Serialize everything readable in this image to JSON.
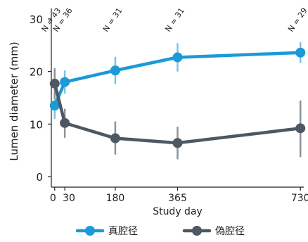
{
  "chart_data": {
    "type": "line",
    "xlabel": "Study day",
    "ylabel": "Lumen diameter (mm)",
    "x_ticks": [
      0,
      30,
      180,
      365,
      730
    ],
    "y_ticks": [
      0,
      10,
      20,
      30
    ],
    "xlim": [
      -10,
      740
    ],
    "ylim": [
      -2,
      32
    ],
    "n_labels": [
      {
        "x": 0,
        "text": "N = 43"
      },
      {
        "x": 30,
        "text": "N = 36"
      },
      {
        "x": 180,
        "text": "N = 31"
      },
      {
        "x": 365,
        "text": "N = 31"
      },
      {
        "x": 730,
        "text": "N = 29"
      }
    ],
    "series": [
      {
        "name": "真腔径",
        "color": "#1a9ad6",
        "err_color": "#7cc3e8",
        "points": [
          {
            "x": 0,
            "y": 13.5,
            "lo": 11.0,
            "hi": 16.0
          },
          {
            "x": 30,
            "y": 18.0,
            "lo": 15.8,
            "hi": 20.2
          },
          {
            "x": 180,
            "y": 20.2,
            "lo": 17.6,
            "hi": 22.8
          },
          {
            "x": 365,
            "y": 22.7,
            "lo": 20.0,
            "hi": 25.4
          },
          {
            "x": 730,
            "y": 23.6,
            "lo": 21.6,
            "hi": 25.6
          }
        ]
      },
      {
        "name": "偽腔径",
        "color": "#4d5863",
        "err_color": "#8b939b",
        "points": [
          {
            "x": 0,
            "y": 17.7,
            "lo": 14.8,
            "hi": 20.6
          },
          {
            "x": 30,
            "y": 10.2,
            "lo": 7.4,
            "hi": 12.9
          },
          {
            "x": 180,
            "y": 7.3,
            "lo": 4.2,
            "hi": 10.5
          },
          {
            "x": 365,
            "y": 6.4,
            "lo": 3.3,
            "hi": 9.5
          },
          {
            "x": 730,
            "y": 9.2,
            "lo": 3.7,
            "hi": 14.5
          }
        ]
      }
    ],
    "legend_position": "bottom"
  }
}
